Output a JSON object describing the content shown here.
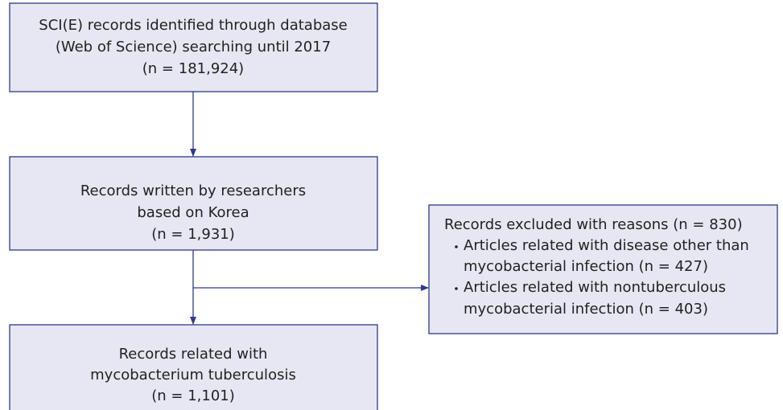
{
  "nodes": [
    {
      "lines": [
        "SCI(E) records identified through database",
        "(Web of Science) searching until 2017",
        "(n = 181,924)"
      ]
    },
    {
      "lines": [
        "Records written by researchers",
        "based on Korea",
        "(n = 1,931)"
      ]
    },
    {
      "lines": [
        "Records related with",
        "mycobacterium tuberculosis",
        "(n = 1,101)"
      ]
    },
    {
      "title": "Records excluded with reasons (n = 830)",
      "items": [
        {
          "lines": [
            "Articles related with disease other than",
            "mycobacterial infection (n = 427)"
          ]
        },
        {
          "lines": [
            "Articles related with nontuberculous",
            "mycobacterial infection (n = 403)"
          ]
        }
      ]
    }
  ]
}
